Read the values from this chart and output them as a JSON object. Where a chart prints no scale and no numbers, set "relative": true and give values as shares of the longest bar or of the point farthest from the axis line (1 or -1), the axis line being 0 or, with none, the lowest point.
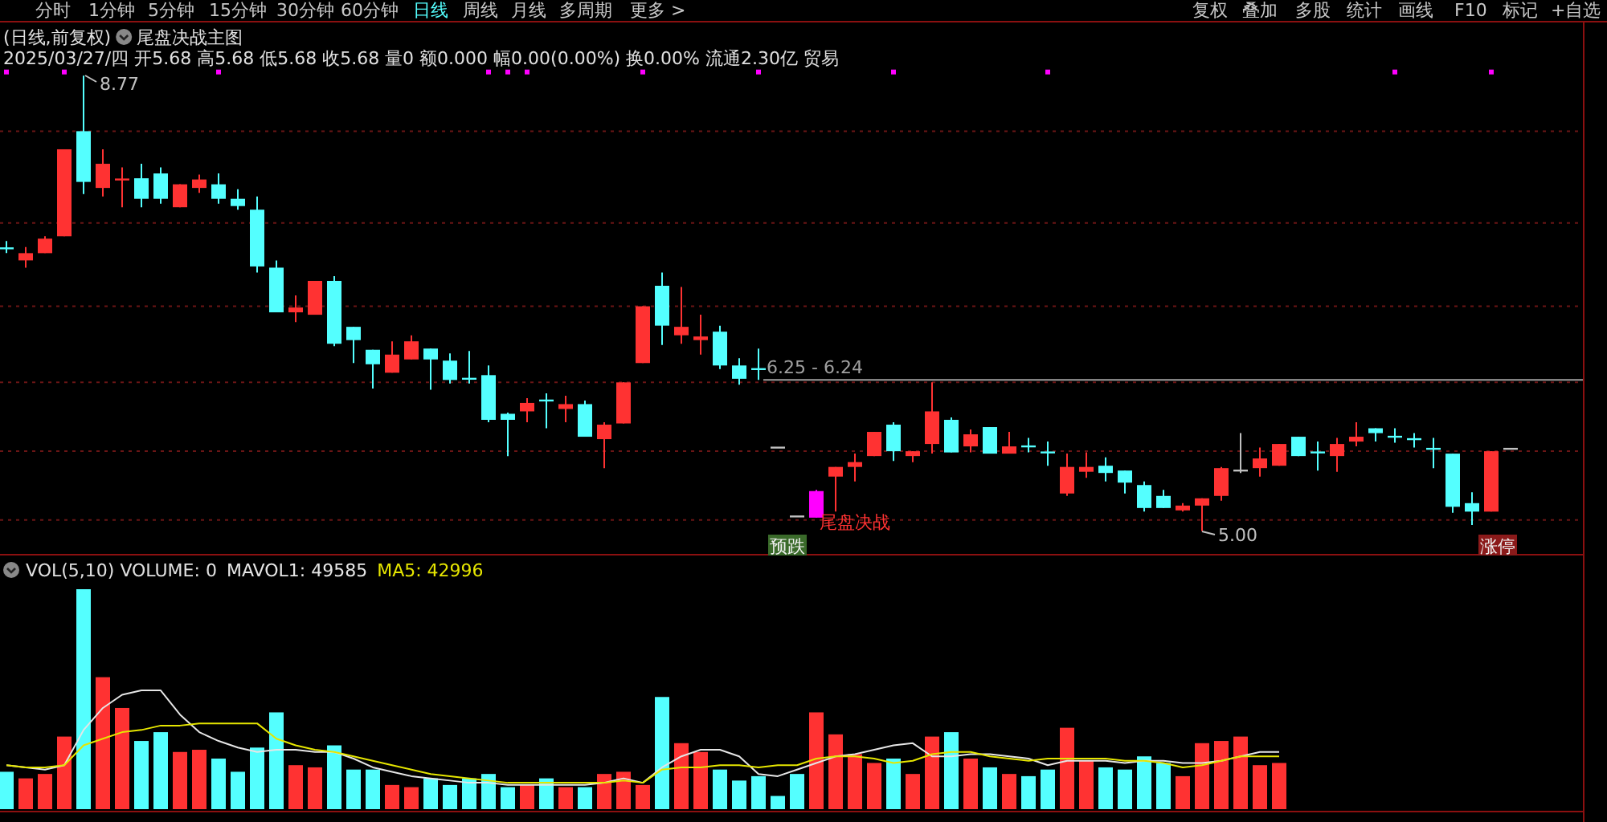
{
  "chart_data": [
    {
      "type": "candlestick",
      "title": "(日线,前复权)",
      "subtitle": "尾盘决战主图",
      "categories": [
        null,
        null,
        null,
        null,
        null,
        null,
        null,
        null,
        null,
        null,
        null,
        null,
        null,
        null,
        null,
        null,
        null,
        null,
        null,
        null,
        null,
        null,
        null,
        null,
        null,
        null,
        null,
        null,
        null,
        null,
        null,
        null,
        null,
        null,
        null,
        null,
        null,
        null,
        null,
        null,
        null,
        null,
        null,
        null,
        null,
        null,
        null,
        null,
        null,
        null,
        null,
        null,
        null,
        null,
        null,
        null,
        null,
        null,
        null,
        null,
        null,
        null,
        null,
        null,
        null,
        null,
        null,
        null,
        null,
        null,
        null,
        null,
        null,
        null,
        null,
        null,
        null,
        null,
        null
      ],
      "ohlc": [
        [
          7.34,
          7.4,
          7.3,
          7.34
        ],
        [
          7.24,
          7.35,
          7.18,
          7.3
        ],
        [
          7.3,
          7.44,
          7.3,
          7.42
        ],
        [
          7.44,
          8.16,
          7.44,
          8.16
        ],
        [
          8.31,
          8.77,
          7.79,
          7.89
        ],
        [
          7.84,
          8.16,
          7.77,
          8.04
        ],
        [
          7.91,
          8.01,
          7.68,
          7.91
        ],
        [
          7.92,
          8.04,
          7.68,
          7.75
        ],
        [
          7.96,
          8.01,
          7.71,
          7.75
        ],
        [
          7.68,
          7.87,
          7.68,
          7.87
        ],
        [
          7.84,
          7.95,
          7.8,
          7.91
        ],
        [
          7.87,
          7.96,
          7.71,
          7.75
        ],
        [
          7.75,
          7.83,
          7.66,
          7.69
        ],
        [
          7.66,
          7.77,
          7.14,
          7.19
        ],
        [
          7.18,
          7.24,
          6.81,
          6.81
        ],
        [
          6.81,
          6.95,
          6.73,
          6.85
        ],
        [
          6.79,
          7.07,
          6.79,
          7.07
        ],
        [
          7.07,
          7.11,
          6.53,
          6.55
        ],
        [
          6.69,
          6.69,
          6.39,
          6.58
        ],
        [
          6.5,
          6.5,
          6.18,
          6.38
        ],
        [
          6.31,
          6.57,
          6.31,
          6.46
        ],
        [
          6.42,
          6.62,
          6.42,
          6.57
        ],
        [
          6.51,
          6.51,
          6.17,
          6.42
        ],
        [
          6.41,
          6.47,
          6.22,
          6.25
        ],
        [
          6.26,
          6.49,
          6.22,
          6.26
        ],
        [
          6.29,
          6.37,
          5.9,
          5.92
        ],
        [
          5.97,
          5.98,
          5.62,
          5.92
        ],
        [
          5.99,
          6.1,
          5.9,
          6.06
        ],
        [
          6.08,
          6.14,
          5.85,
          6.08
        ],
        [
          6.01,
          6.12,
          5.9,
          6.05
        ],
        [
          6.05,
          6.08,
          5.78,
          5.78
        ],
        [
          5.76,
          5.9,
          5.52,
          5.88
        ],
        [
          5.89,
          6.23,
          5.89,
          6.23
        ],
        [
          6.39,
          6.86,
          6.39,
          6.86
        ],
        [
          7.03,
          7.14,
          6.54,
          6.7
        ],
        [
          6.62,
          7.02,
          6.55,
          6.69
        ],
        [
          6.58,
          6.79,
          6.46,
          6.61
        ],
        [
          6.65,
          6.7,
          6.34,
          6.37
        ],
        [
          6.37,
          6.43,
          6.21,
          6.26
        ],
        [
          6.34,
          6.51,
          6.25,
          6.34
        ],
        [
          5.69,
          5.69,
          5.69,
          5.69
        ],
        [
          5.12,
          5.12,
          5.12,
          5.12
        ],
        [
          5.11,
          5.34,
          5.11,
          5.33
        ],
        [
          5.45,
          5.53,
          5.16,
          5.53
        ],
        [
          5.53,
          5.64,
          5.41,
          5.57
        ],
        [
          5.62,
          5.82,
          5.62,
          5.82
        ],
        [
          5.88,
          5.9,
          5.58,
          5.66
        ],
        [
          5.62,
          5.66,
          5.57,
          5.66
        ],
        [
          5.72,
          6.23,
          5.64,
          5.99
        ],
        [
          5.92,
          5.94,
          5.65,
          5.65
        ],
        [
          5.7,
          5.84,
          5.65,
          5.8
        ],
        [
          5.86,
          5.86,
          5.64,
          5.64
        ],
        [
          5.64,
          5.82,
          5.64,
          5.7
        ],
        [
          5.7,
          5.77,
          5.65,
          5.7
        ],
        [
          5.65,
          5.74,
          5.54,
          5.65
        ],
        [
          5.31,
          5.64,
          5.29,
          5.53
        ],
        [
          5.49,
          5.65,
          5.44,
          5.53
        ],
        [
          5.54,
          5.61,
          5.41,
          5.48
        ],
        [
          5.5,
          5.5,
          5.31,
          5.4
        ],
        [
          5.38,
          5.41,
          5.16,
          5.19
        ],
        [
          5.29,
          5.34,
          5.19,
          5.19
        ],
        [
          5.17,
          5.23,
          5.16,
          5.21
        ],
        [
          5.21,
          5.27,
          5.0,
          5.27
        ],
        [
          5.29,
          5.53,
          5.25,
          5.52
        ],
        [
          5.5,
          5.81,
          5.48,
          5.5
        ],
        [
          5.52,
          5.69,
          5.45,
          5.6
        ],
        [
          5.54,
          5.72,
          5.54,
          5.72
        ],
        [
          5.78,
          5.78,
          5.62,
          5.62
        ],
        [
          5.65,
          5.74,
          5.5,
          5.65
        ],
        [
          5.62,
          5.77,
          5.49,
          5.72
        ],
        [
          5.74,
          5.9,
          5.7,
          5.78
        ],
        [
          5.85,
          5.85,
          5.74,
          5.81
        ],
        [
          5.78,
          5.85,
          5.73,
          5.78
        ],
        [
          5.76,
          5.81,
          5.69,
          5.76
        ],
        [
          5.68,
          5.77,
          5.52,
          5.68
        ],
        [
          5.64,
          5.64,
          5.15,
          5.2
        ],
        [
          5.23,
          5.32,
          5.05,
          5.16
        ],
        [
          5.16,
          5.66,
          5.16,
          5.66
        ],
        [
          5.68,
          5.68,
          5.68,
          5.68
        ]
      ],
      "colors": [
        "#54ffff",
        "#ff3232",
        "#ff3232",
        "#ff3232",
        "#54ffff",
        "#ff3232",
        "#ff3232",
        "#54ffff",
        "#54ffff",
        "#ff3232",
        "#ff3232",
        "#54ffff",
        "#54ffff",
        "#54ffff",
        "#54ffff",
        "#ff3232",
        "#ff3232",
        "#54ffff",
        "#54ffff",
        "#54ffff",
        "#ff3232",
        "#ff3232",
        "#54ffff",
        "#54ffff",
        "#54ffff",
        "#54ffff",
        "#54ffff",
        "#ff3232",
        "#54ffff",
        "#ff3232",
        "#54ffff",
        "#ff3232",
        "#ff3232",
        "#ff3232",
        "#54ffff",
        "#ff3232",
        "#ff3232",
        "#54ffff",
        "#54ffff",
        "#54ffff",
        "#c0c0c0",
        "#c0c0c0",
        "#ff00ff",
        "#ff3232",
        "#ff3232",
        "#ff3232",
        "#54ffff",
        "#ff3232",
        "#ff3232",
        "#54ffff",
        "#ff3232",
        "#54ffff",
        "#ff3232",
        "#54ffff",
        "#54ffff",
        "#ff3232",
        "#ff3232",
        "#54ffff",
        "#54ffff",
        "#54ffff",
        "#54ffff",
        "#ff3232",
        "#ff3232",
        "#ff3232",
        "#c0c0c0",
        "#ff3232",
        "#ff3232",
        "#54ffff",
        "#54ffff",
        "#ff3232",
        "#ff3232",
        "#54ffff",
        "#54ffff",
        "#54ffff",
        "#54ffff",
        "#54ffff",
        "#54ffff",
        "#ff3232",
        "#c0c0c0"
      ],
      "ylim": [
        4.81,
        9.21
      ],
      "yticks": [
        {
          "value": 8.31,
          "label": null
        },
        {
          "value": 7.55,
          "label": null
        },
        {
          "value": 6.86,
          "label": null
        },
        {
          "value": 6.23,
          "label": null
        },
        {
          "value": 5.66,
          "label": null
        },
        {
          "value": 5.09,
          "label": null
        }
      ],
      "grid": "y",
      "tick_labels": false,
      "marker": "square",
      "series": [
        {
          "type": "scatter",
          "color": "#ff00ff",
          "values": [
            8.8,
            null,
            null,
            8.8,
            null,
            null,
            null,
            null,
            null,
            null,
            null,
            8.8,
            null,
            null,
            null,
            null,
            null,
            null,
            null,
            null,
            null,
            null,
            null,
            null,
            null,
            8.8,
            8.8,
            8.8,
            null,
            null,
            null,
            null,
            null,
            8.8,
            null,
            null,
            null,
            null,
            null,
            8.8,
            null,
            null,
            null,
            null,
            null,
            null,
            8.8,
            null,
            null,
            null,
            null,
            null,
            null,
            null,
            8.8,
            null,
            null,
            null,
            null,
            null,
            null,
            null,
            null,
            null,
            null,
            null,
            null,
            null,
            null,
            null,
            null,
            null,
            8.8,
            null,
            null,
            null,
            null,
            8.8,
            null
          ]
        }
      ],
      "ref_lines": [
        {
          "axis": "y",
          "value": 6.25,
          "label": "6.25 - 6.24",
          "color": "#a0a0a0"
        }
      ],
      "annotations": [
        "分时",
        "1分钟",
        "5分钟",
        "15分钟",
        "30分钟",
        "60分钟",
        "日线",
        "周线",
        "月线",
        "多周期",
        "更多 >",
        "复权",
        "叠加",
        "多股",
        "统计",
        "画线",
        "F10",
        "标记",
        "+自选",
        "2025/03/27/四 开5.68 高5.68 低5.68 收5.68 量0 额0.000 幅0.00(0.00%) 换0.00% 流通2.30亿 贸易",
        "8.77",
        "5.00",
        "尾盘决战",
        "预跌",
        "涨停"
      ]
    },
    {
      "type": "bar",
      "relative": true,
      "title": "VOL(5,10) VOLUME: 0",
      "legend": "top left",
      "categories": [
        null,
        null,
        null,
        null,
        null,
        null,
        null,
        null,
        null,
        null,
        null,
        null,
        null,
        null,
        null,
        null,
        null,
        null,
        null,
        null,
        null,
        null,
        null,
        null,
        null,
        null,
        null,
        null,
        null,
        null,
        null,
        null,
        null,
        null,
        null,
        null,
        null,
        null,
        null,
        null,
        null,
        null,
        null,
        null,
        null,
        null,
        null,
        null,
        null,
        null,
        null,
        null,
        null,
        null,
        null,
        null,
        null,
        null,
        null,
        null,
        null,
        null,
        null,
        null,
        null,
        null,
        null,
        null,
        null,
        null,
        null,
        null,
        null,
        null,
        null,
        null,
        null,
        null,
        null
      ],
      "series": [
        {
          "type": "bar",
          "colors": [
            "#54ffff",
            "#ff3232",
            "#ff3232",
            "#ff3232",
            "#54ffff",
            "#ff3232",
            "#ff3232",
            "#54ffff",
            "#54ffff",
            "#ff3232",
            "#ff3232",
            "#54ffff",
            "#54ffff",
            "#54ffff",
            "#54ffff",
            "#ff3232",
            "#ff3232",
            "#54ffff",
            "#54ffff",
            "#54ffff",
            "#ff3232",
            "#ff3232",
            "#54ffff",
            "#54ffff",
            "#54ffff",
            "#54ffff",
            "#54ffff",
            "#ff3232",
            "#54ffff",
            "#ff3232",
            "#54ffff",
            "#ff3232",
            "#ff3232",
            "#ff3232",
            "#54ffff",
            "#ff3232",
            "#ff3232",
            "#54ffff",
            "#54ffff",
            "#54ffff",
            "#54ffff",
            "#54ffff",
            "#ff3232",
            "#ff3232",
            "#ff3232",
            "#ff3232",
            "#54ffff",
            "#ff3232",
            "#ff3232",
            "#54ffff",
            "#ff3232",
            "#54ffff",
            "#ff3232",
            "#54ffff",
            "#54ffff",
            "#ff3232",
            "#ff3232",
            "#54ffff",
            "#54ffff",
            "#54ffff",
            "#54ffff",
            "#ff3232",
            "#ff3232",
            "#ff3232",
            "#ff3232",
            "#ff3232",
            "#ff3232",
            null,
            null,
            null,
            null,
            null,
            null,
            null,
            null,
            null,
            null,
            null,
            null
          ],
          "values": [
            0.17,
            0.14,
            0.16,
            0.33,
            1,
            0.6,
            0.46,
            0.31,
            0.35,
            0.26,
            0.27,
            0.23,
            0.17,
            0.28,
            0.44,
            0.2,
            0.19,
            0.29,
            0.18,
            0.18,
            0.11,
            0.1,
            0.14,
            0.11,
            0.14,
            0.16,
            0.1,
            0.11,
            0.14,
            0.1,
            0.1,
            0.16,
            0.17,
            0.11,
            0.51,
            0.3,
            0.26,
            0.18,
            0.13,
            0.15,
            0.06,
            0.16,
            0.44,
            0.34,
            0.25,
            0.21,
            0.23,
            0.16,
            0.33,
            0.35,
            0.23,
            0.19,
            0.16,
            0.15,
            0.18,
            0.37,
            0.22,
            0.19,
            0.18,
            0.24,
            0.21,
            0.15,
            0.3,
            0.31,
            0.33,
            0.2,
            0.21,
            null,
            null,
            null,
            null,
            null,
            null,
            null,
            null,
            null,
            null,
            null,
            null
          ]
        },
        {
          "type": "line",
          "name": "MAVOL1: 49585",
          "color": "#e6e6e6",
          "values": [
            0.2,
            0.19,
            0.18,
            0.2,
            0.36,
            0.46,
            0.52,
            0.54,
            0.54,
            0.43,
            0.35,
            0.31,
            0.28,
            0.26,
            0.27,
            0.27,
            0.26,
            0.26,
            0.23,
            0.19,
            0.17,
            0.15,
            0.14,
            0.13,
            0.12,
            0.12,
            0.11,
            0.11,
            0.11,
            0.11,
            0.11,
            0.12,
            0.14,
            0.12,
            0.19,
            0.24,
            0.27,
            0.27,
            0.24,
            0.16,
            0.15,
            0.18,
            0.21,
            0.24,
            0.25,
            0.27,
            0.29,
            0.3,
            0.24,
            0.24,
            0.25,
            0.25,
            0.24,
            0.23,
            0.2,
            0.22,
            0.22,
            0.22,
            0.21,
            0.22,
            0.22,
            0.21,
            0.21,
            0.22,
            0.24,
            0.26,
            0.26,
            null,
            null,
            null,
            null,
            null,
            null,
            null,
            null,
            null,
            null,
            null,
            null
          ]
        },
        {
          "type": "line",
          "name": "MA5: 42996",
          "color": "#e6e600",
          "values": [
            0.2,
            0.19,
            0.19,
            0.2,
            0.29,
            0.32,
            0.35,
            0.36,
            0.38,
            0.38,
            0.39,
            0.39,
            0.39,
            0.39,
            0.32,
            0.29,
            0.27,
            0.26,
            0.24,
            0.22,
            0.2,
            0.18,
            0.16,
            0.15,
            0.14,
            0.13,
            0.12,
            0.12,
            0.12,
            0.12,
            0.12,
            0.12,
            0.13,
            0.12,
            0.18,
            0.19,
            0.19,
            0.2,
            0.2,
            0.19,
            0.2,
            0.2,
            0.23,
            0.24,
            0.24,
            0.23,
            0.21,
            0.22,
            0.25,
            0.26,
            0.26,
            0.24,
            0.23,
            0.22,
            0.23,
            0.23,
            0.23,
            0.23,
            0.22,
            0.22,
            0.21,
            0.19,
            0.2,
            0.22,
            0.24,
            0.24,
            0.24,
            null,
            null,
            null,
            null,
            null,
            null,
            null,
            null,
            null,
            null,
            null,
            null
          ]
        }
      ]
    }
  ]
}
